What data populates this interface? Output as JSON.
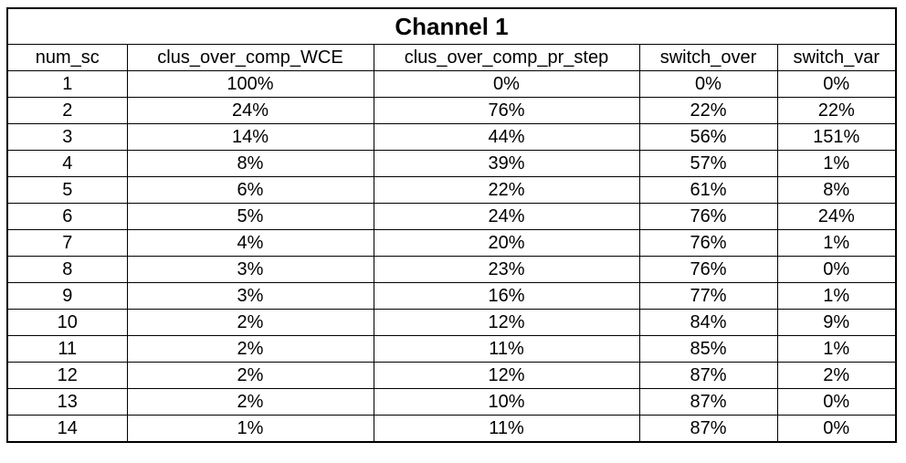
{
  "chart_data": {
    "type": "table",
    "title": "Channel 1",
    "columns": [
      "num_sc",
      "clus_over_comp_WCE",
      "clus_over_comp_pr_step",
      "switch_over",
      "switch_var"
    ],
    "rows": [
      [
        "1",
        "100%",
        "0%",
        "0%",
        "0%"
      ],
      [
        "2",
        "24%",
        "76%",
        "22%",
        "22%"
      ],
      [
        "3",
        "14%",
        "44%",
        "56%",
        "151%"
      ],
      [
        "4",
        "8%",
        "39%",
        "57%",
        "1%"
      ],
      [
        "5",
        "6%",
        "22%",
        "61%",
        "8%"
      ],
      [
        "6",
        "5%",
        "24%",
        "76%",
        "24%"
      ],
      [
        "7",
        "4%",
        "20%",
        "76%",
        "1%"
      ],
      [
        "8",
        "3%",
        "23%",
        "76%",
        "0%"
      ],
      [
        "9",
        "3%",
        "16%",
        "77%",
        "1%"
      ],
      [
        "10",
        "2%",
        "12%",
        "84%",
        "9%"
      ],
      [
        "11",
        "2%",
        "11%",
        "85%",
        "1%"
      ],
      [
        "12",
        "2%",
        "12%",
        "87%",
        "2%"
      ],
      [
        "13",
        "2%",
        "10%",
        "87%",
        "0%"
      ],
      [
        "14",
        "1%",
        "11%",
        "87%",
        "0%"
      ]
    ]
  }
}
